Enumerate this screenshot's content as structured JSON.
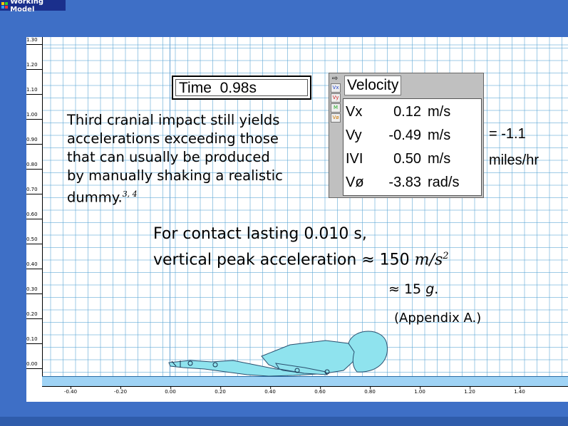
{
  "window": {
    "title": "Working Model"
  },
  "rulers": {
    "y_ticks": [
      "1.30",
      "1.20",
      "1.10",
      "1.00",
      "0.90",
      "0.80",
      "0.70",
      "0.60",
      "0.50",
      "0.40",
      "0.30",
      "0.20",
      "0.10",
      "0.00"
    ],
    "x_ticks": [
      "-0.40",
      "-0.20",
      "0.00",
      "0.20",
      "0.40",
      "0.60",
      "0.80",
      "1.00",
      "1.20",
      "1.40"
    ]
  },
  "time_display": {
    "label": "Time",
    "value": "0.98",
    "unit": "s"
  },
  "velocity_meter": {
    "title": "Velocity",
    "tool_buttons": [
      "Vx",
      "Vy",
      "M",
      "Vø"
    ],
    "rows": [
      {
        "label": "Vx",
        "value": "0.12",
        "unit": "m/s"
      },
      {
        "label": "Vy",
        "value": "-0.49",
        "unit": "m/s"
      },
      {
        "label": "IVI",
        "value": "0.50",
        "unit": "m/s"
      },
      {
        "label": "Vø",
        "value": "-3.83",
        "unit": "rad/s"
      }
    ]
  },
  "conversion": {
    "prefix": "= ",
    "value": "-1.1",
    "unit": "miles/hr"
  },
  "description": {
    "lines": [
      "Third cranial impact still yields",
      "accelerations exceeding those",
      "that can usually be produced",
      "by  manually shaking a realistic",
      " dummy."
    ],
    "citation": "3, 4"
  },
  "annotation": {
    "contact": "For contact lasting 0.010 s,",
    "accel_prefix": "vertical peak acceleration ≈ 150 ",
    "accel_unit": "m/s",
    "accel_exp": "2",
    "g_prefix": "≈ 15 ",
    "g_unit": "g",
    "g_suffix": ".",
    "appendix": "(Appendix A.)"
  },
  "colors": {
    "grid": "#50a0d2",
    "floor": "#9fd3f5",
    "dummy": "#8fe3ee",
    "background": "#3e6fc6"
  }
}
